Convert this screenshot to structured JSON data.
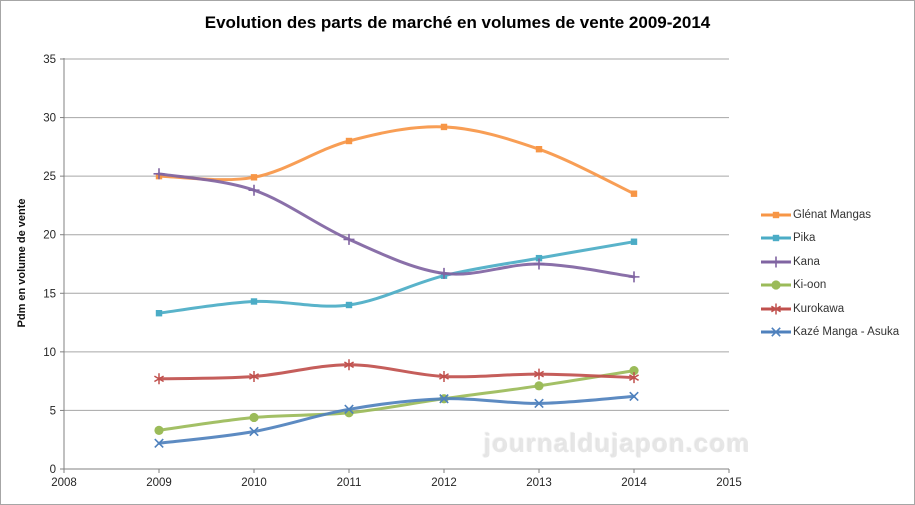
{
  "watermark": "journaldujapon.com",
  "chart_data": {
    "type": "line",
    "title": "Evolution des parts de marché en volumes de vente 2009-2014",
    "xlabel": "",
    "ylabel": "Pdm en volume de vente",
    "x": [
      2009,
      2010,
      2011,
      2012,
      2013,
      2014
    ],
    "xaxis_ticks": [
      2008,
      2009,
      2010,
      2011,
      2012,
      2013,
      2014,
      2015
    ],
    "xlim": [
      2008,
      2015
    ],
    "ylim": [
      0,
      35
    ],
    "ytick_step": 5,
    "grid": "horizontal",
    "line_smoothing": true,
    "legend_position": "right",
    "axis_color": "#808080",
    "gridline_color": "#a6a6a6",
    "tick_label_color": "#262626",
    "series": [
      {
        "name": "Glénat Mangas",
        "color": "#F79646",
        "marker": "square",
        "values": [
          25.0,
          24.9,
          28.0,
          29.2,
          27.3,
          23.5
        ]
      },
      {
        "name": "Pika",
        "color": "#4BACC6",
        "marker": "square",
        "values": [
          13.3,
          14.3,
          14.0,
          16.5,
          18.0,
          19.4
        ]
      },
      {
        "name": "Kana",
        "color": "#8064A2",
        "marker": "plus",
        "values": [
          25.2,
          23.8,
          19.6,
          16.7,
          17.5,
          16.4
        ]
      },
      {
        "name": "Ki-oon",
        "color": "#9BBB59",
        "marker": "circle",
        "values": [
          3.3,
          4.4,
          4.8,
          6.0,
          7.1,
          8.4
        ]
      },
      {
        "name": "Kurokawa",
        "color": "#C0504D",
        "marker": "asterisk",
        "values": [
          7.7,
          7.9,
          8.9,
          7.9,
          8.1,
          7.8
        ]
      },
      {
        "name": "Kazé Manga - Asuka",
        "color": "#4F81BD",
        "marker": "x",
        "values": [
          2.2,
          3.2,
          5.1,
          6.0,
          5.6,
          6.2
        ]
      }
    ]
  }
}
